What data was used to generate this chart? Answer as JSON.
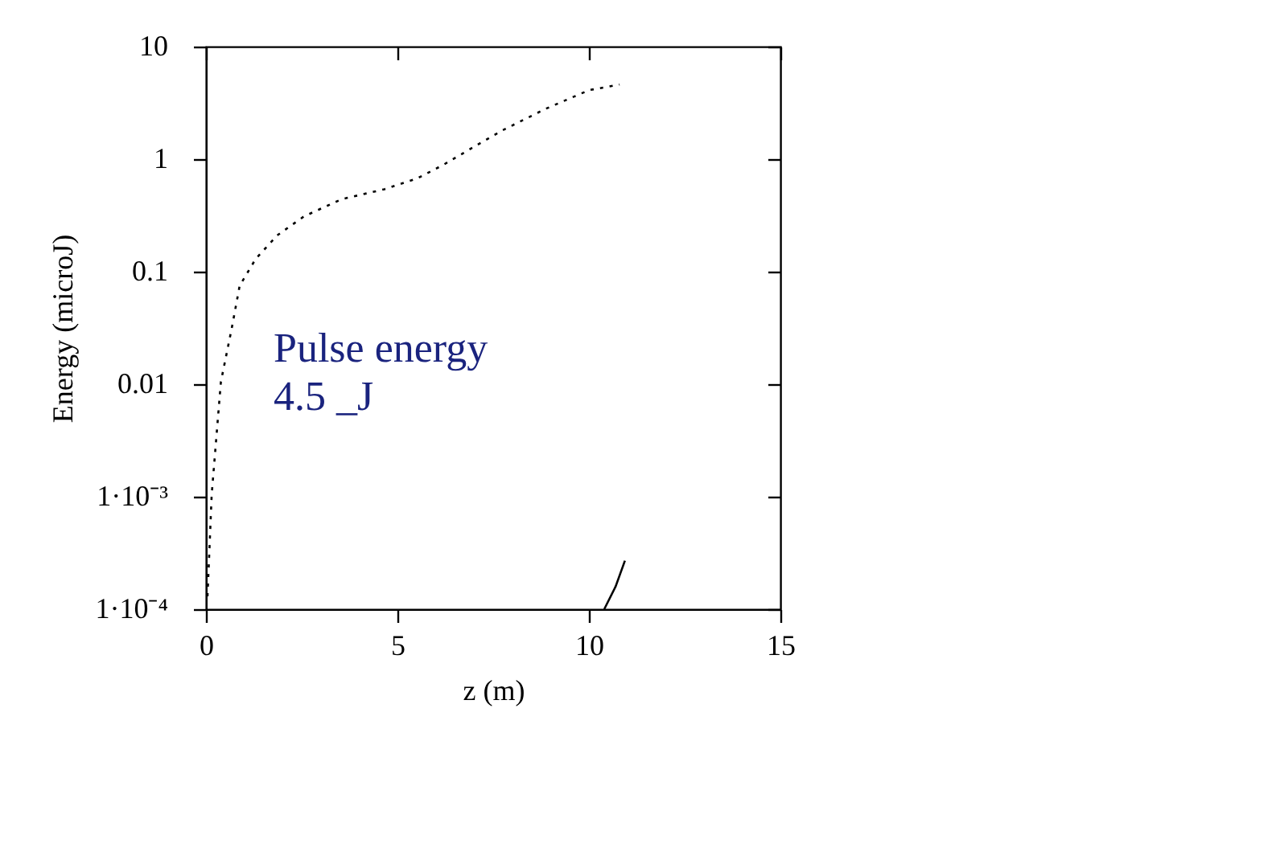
{
  "chart_data": {
    "type": "line",
    "xlabel": "z (m)",
    "ylabel": "Energy (microJ)",
    "log": "y",
    "grid": false,
    "marker": "none",
    "xlim": [
      0,
      15
    ],
    "xticks": [
      0,
      5,
      10,
      15
    ],
    "ylim": [
      0.0001,
      10
    ],
    "yticks": [
      {
        "value": 0.0001,
        "label": "1·10⁻⁴"
      },
      {
        "value": 0.001,
        "label": "1·10⁻³"
      },
      0.01,
      0.1,
      1,
      10
    ],
    "series": [
      {
        "color": "#000000",
        "line_style": "dotted",
        "x": [
          0.04,
          0.15,
          0.39,
          0.67,
          0.88,
          1.3,
          1.86,
          2.56,
          3.54,
          4.66,
          5.5,
          6.2,
          6.9,
          7.74,
          8.87,
          10.0,
          10.8
        ],
        "values": [
          0.00013,
          0.00105,
          0.0105,
          0.031,
          0.075,
          0.13,
          0.21,
          0.31,
          0.44,
          0.54,
          0.67,
          0.89,
          1.23,
          1.8,
          2.8,
          4.1,
          4.6
        ]
      },
      {
        "color": "#000000",
        "line_style": "solid",
        "x": [
          10.4,
          10.7,
          10.94
        ],
        "values": [
          0.0001,
          0.00016,
          0.00027
        ]
      }
    ],
    "annotations": [
      "Pulse energy\n4.5 _J"
    ]
  }
}
